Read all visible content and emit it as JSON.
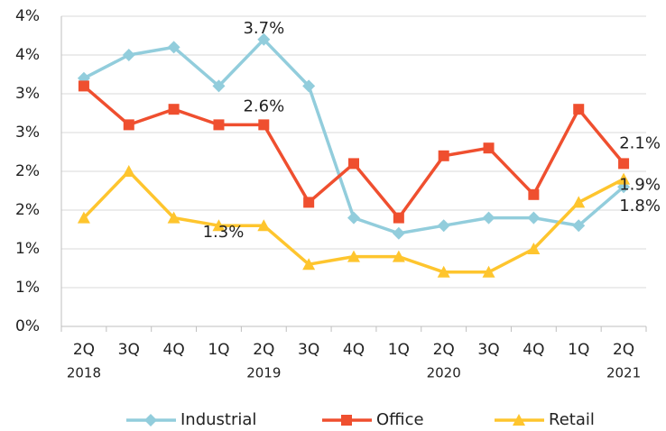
{
  "chart_data": {
    "type": "line",
    "categories": [
      "2Q",
      "3Q",
      "4Q",
      "1Q",
      "2Q",
      "3Q",
      "4Q",
      "1Q",
      "2Q",
      "3Q",
      "4Q",
      "1Q",
      "2Q"
    ],
    "years": [
      "2018",
      null,
      null,
      null,
      "2019",
      null,
      null,
      null,
      "2020",
      null,
      null,
      null,
      "2021"
    ],
    "series": [
      {
        "name": "Industrial",
        "color": "#92cddc",
        "marker": "diamond",
        "values": [
          3.2,
          3.5,
          3.6,
          3.1,
          3.7,
          3.1,
          1.4,
          1.2,
          1.3,
          1.4,
          1.4,
          1.3,
          1.8
        ],
        "value_labels": [
          null,
          null,
          null,
          null,
          "3.7%",
          null,
          null,
          null,
          null,
          null,
          null,
          null,
          "1.8%"
        ]
      },
      {
        "name": "Office",
        "color": "#ef4f2f",
        "marker": "square",
        "values": [
          3.1,
          2.6,
          2.8,
          2.6,
          2.6,
          1.6,
          2.1,
          1.4,
          2.2,
          2.3,
          1.7,
          2.8,
          2.1
        ],
        "value_labels": [
          null,
          null,
          null,
          null,
          "2.6%",
          null,
          null,
          null,
          null,
          null,
          null,
          null,
          "2.1%"
        ]
      },
      {
        "name": "Retail",
        "color": "#fec52e",
        "marker": "triangle",
        "values": [
          1.4,
          2.0,
          1.4,
          1.3,
          1.3,
          0.8,
          0.9,
          0.9,
          0.7,
          0.7,
          1.0,
          1.6,
          1.9
        ],
        "value_labels": [
          null,
          null,
          null,
          null,
          "1.3%",
          null,
          null,
          null,
          null,
          null,
          null,
          null,
          "1.9%"
        ]
      }
    ],
    "ylim": [
      0,
      4
    ],
    "yticks": [
      {
        "value": 0,
        "label": "0%"
      },
      {
        "value": 0.5,
        "label": "1%"
      },
      {
        "value": 1,
        "label": "1%"
      },
      {
        "value": 1.5,
        "label": "2%"
      },
      {
        "value": 2,
        "label": "2%"
      },
      {
        "value": 2.5,
        "label": "3%"
      },
      {
        "value": 3,
        "label": "3%"
      },
      {
        "value": 3.5,
        "label": "4%"
      },
      {
        "value": 4,
        "label": "4%"
      }
    ],
    "grid": true,
    "legend": "bottom"
  }
}
